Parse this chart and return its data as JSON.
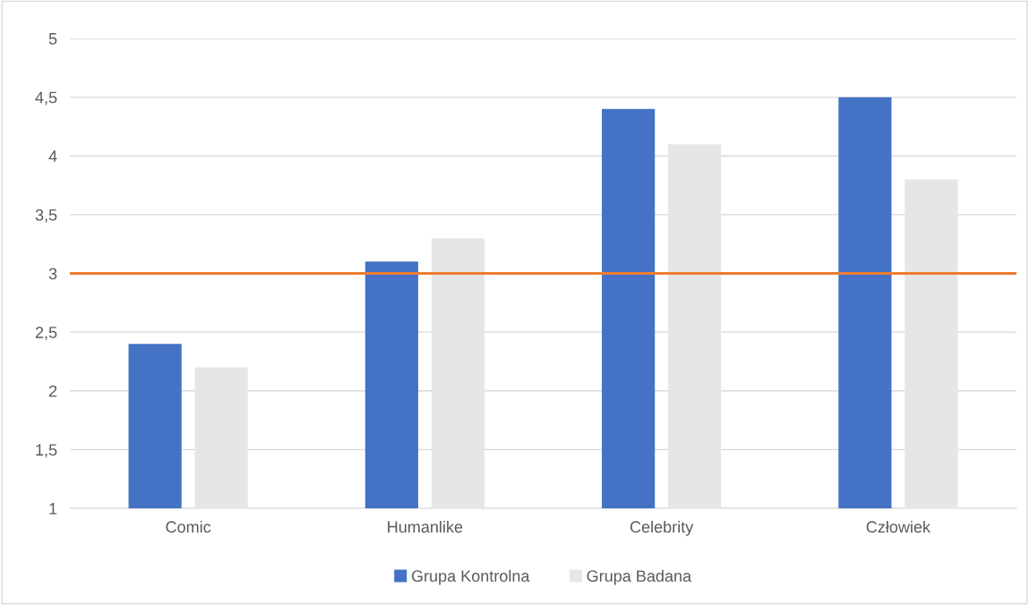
{
  "chart_data": {
    "type": "bar",
    "categories": [
      "Comic",
      "Humanlike",
      "Celebrity",
      "Człowiek"
    ],
    "series": [
      {
        "name": "Grupa Kontrolna",
        "color": "#4472c4",
        "values": [
          2.4,
          3.1,
          4.4,
          4.5
        ]
      },
      {
        "name": "Grupa Badana",
        "color": "#e7e6e6",
        "values": [
          2.2,
          3.3,
          4.1,
          3.8
        ]
      }
    ],
    "ylim": [
      1,
      5
    ],
    "yticks": [
      1,
      {
        "value": 1.5,
        "label": "1,5"
      },
      2,
      {
        "value": 2.5,
        "label": "2,5"
      },
      3,
      {
        "value": 3.5,
        "label": "3,5"
      },
      4,
      {
        "value": 4.5,
        "label": "4,5"
      },
      5
    ],
    "ref_lines": [
      {
        "axis": "y",
        "value": 3,
        "color": "#ed7d31",
        "line_style": "solid"
      }
    ],
    "grid": "y",
    "legend": "bottom"
  }
}
